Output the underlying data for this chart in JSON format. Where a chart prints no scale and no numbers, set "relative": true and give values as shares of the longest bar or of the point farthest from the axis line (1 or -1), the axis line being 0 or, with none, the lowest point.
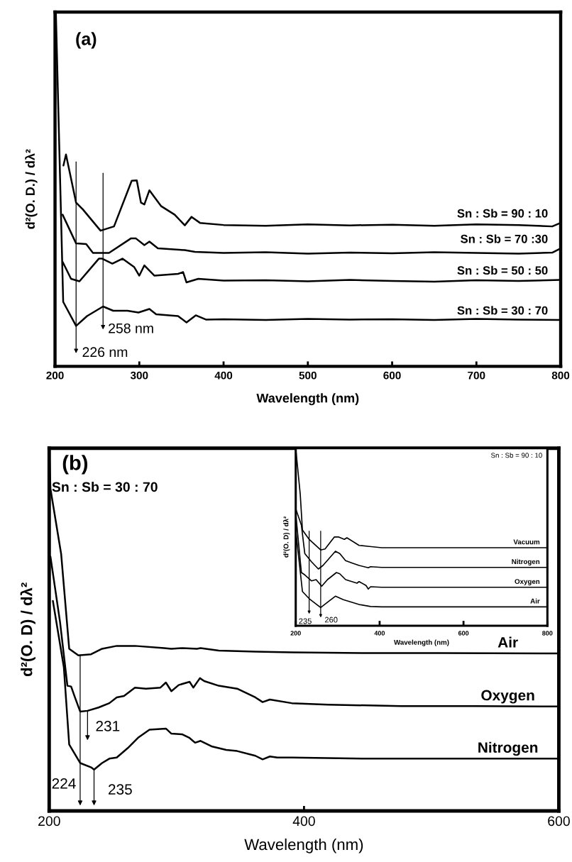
{
  "chart_data": [
    {
      "type": "line",
      "title": "(a)",
      "xlabel": "Wavelength (nm)",
      "ylabel": "d²(O. D.) / dλ²",
      "relative": true,
      "tick_labels": "x",
      "xlim": [
        200,
        800
      ],
      "xticks": [
        200,
        300,
        400,
        500,
        600,
        700,
        800
      ],
      "series": [
        {
          "name": "Sn : Sb = 90 : 10",
          "color": "#000000",
          "x": [
            210,
            213,
            225,
            233,
            254,
            270,
            291,
            297,
            302,
            306,
            312,
            326,
            342,
            354,
            362,
            372,
            400,
            450,
            500,
            550,
            600,
            650,
            700,
            750,
            790,
            800
          ],
          "values": [
            0.567,
            0.598,
            0.462,
            0.443,
            0.383,
            0.395,
            0.524,
            0.525,
            0.462,
            0.457,
            0.497,
            0.452,
            0.428,
            0.398,
            0.422,
            0.405,
            0.399,
            0.397,
            0.401,
            0.398,
            0.4,
            0.397,
            0.401,
            0.399,
            0.395,
            0.405
          ]
        },
        {
          "name": "Sn : Sb = 70 :30",
          "color": "#000000",
          "x": [
            209,
            225,
            237,
            245,
            264,
            290,
            296,
            306,
            312,
            322,
            354,
            366,
            400,
            450,
            500,
            550,
            600,
            650,
            700,
            750,
            790,
            800
          ],
          "values": [
            0.428,
            0.347,
            0.345,
            0.32,
            0.32,
            0.361,
            0.361,
            0.342,
            0.352,
            0.333,
            0.328,
            0.323,
            0.32,
            0.322,
            0.318,
            0.321,
            0.319,
            0.322,
            0.32,
            0.318,
            0.321,
            0.333
          ]
        },
        {
          "name": "Sn : Sb = 50 : 50",
          "color": "#000000",
          "x": [
            209,
            219,
            229,
            252,
            256,
            268,
            280,
            294,
            300,
            306,
            318,
            346,
            352,
            356,
            370,
            400,
            450,
            500,
            550,
            600,
            650,
            700,
            750,
            800
          ],
          "values": [
            0.295,
            0.247,
            0.24,
            0.304,
            0.304,
            0.29,
            0.304,
            0.28,
            0.256,
            0.285,
            0.256,
            0.261,
            0.266,
            0.237,
            0.247,
            0.242,
            0.243,
            0.24,
            0.244,
            0.241,
            0.239,
            0.243,
            0.241,
            0.244
          ]
        },
        {
          "name": "Sn : Sb = 30 : 70",
          "color": "#000000",
          "x": [
            201,
            209.7,
            225,
            238,
            257,
            269,
            286,
            299,
            312,
            320,
            346,
            356,
            367,
            379,
            400,
            450,
            500,
            550,
            600,
            650,
            700,
            750,
            800
          ],
          "values": [
            1.0,
            0.182,
            0.114,
            0.142,
            0.169,
            0.157,
            0.157,
            0.152,
            0.162,
            0.147,
            0.142,
            0.124,
            0.144,
            0.132,
            0.133,
            0.131,
            0.134,
            0.132,
            0.133,
            0.131,
            0.134,
            0.132,
            0.131
          ]
        }
      ],
      "annotations": [
        {
          "text": "226 nm",
          "x": 225,
          "y": 0.114
        },
        {
          "text": "258 nm",
          "x": 257,
          "y": 0.169
        }
      ]
    },
    {
      "type": "line",
      "title": "(b)",
      "subtitle": "Sn : Sb = 30 : 70",
      "xlabel": "Wavelength (nm)",
      "ylabel": "d²(O. D) / dλ²",
      "relative": true,
      "tick_labels": "x",
      "xlim": [
        200,
        600
      ],
      "xticks": [
        200,
        400,
        600
      ],
      "series": [
        {
          "name": "Air",
          "color": "#000000",
          "x": [
            200,
            201,
            209.4,
            215.7,
            222.9,
            232.9,
            241.5,
            253,
            267.3,
            290.2,
            295.9,
            304.5,
            316,
            318.8,
            333.1,
            361.8,
            390.4,
            447.7,
            504.9,
            598.9
          ],
          "values": [
            1.0,
            0.888,
            0.708,
            0.447,
            0.429,
            0.432,
            0.447,
            0.455,
            0.455,
            0.449,
            0.447,
            0.449,
            0.447,
            0.449,
            0.442,
            0.439,
            0.437,
            0.435,
            0.435,
            0.434
          ]
        },
        {
          "name": "Oxygen",
          "color": "#000000",
          "x": [
            201,
            208.5,
            214.3,
            217.2,
            220,
            224.3,
            230.1,
            238.7,
            247.2,
            253,
            258.7,
            267.3,
            275.9,
            287.3,
            291.6,
            295.9,
            301.6,
            310.2,
            313.1,
            318.3,
            321.7,
            333.1,
            347.5,
            361.8,
            367.5,
            373.2,
            390.4,
            419,
            476.3,
            533.6,
            598.9
          ],
          "values": [
            0.701,
            0.521,
            0.345,
            0.343,
            0.315,
            0.274,
            0.276,
            0.285,
            0.297,
            0.313,
            0.317,
            0.34,
            0.337,
            0.34,
            0.354,
            0.33,
            0.347,
            0.356,
            0.34,
            0.366,
            0.358,
            0.345,
            0.337,
            0.313,
            0.3,
            0.307,
            0.297,
            0.293,
            0.289,
            0.289,
            0.288
          ]
        },
        {
          "name": "Nitrogen",
          "color": "#000000",
          "x": [
            202.9,
            211.5,
            215.7,
            224.3,
            232.9,
            235.2,
            241.5,
            247.2,
            253,
            261.6,
            270.2,
            278.7,
            287.3,
            291.6,
            295.9,
            304.5,
            310.2,
            314.5,
            318.8,
            327.4,
            338.9,
            347.5,
            361.8,
            367.5,
            373.2,
            379,
            390.4,
            447.7,
            504.9,
            598.9
          ],
          "values": [
            0.579,
            0.396,
            0.183,
            0.132,
            0.12,
            0.114,
            0.132,
            0.144,
            0.147,
            0.173,
            0.203,
            0.224,
            0.226,
            0.227,
            0.213,
            0.211,
            0.201,
            0.188,
            0.193,
            0.178,
            0.168,
            0.165,
            0.152,
            0.142,
            0.15,
            0.147,
            0.147,
            0.144,
            0.144,
            0.144
          ]
        }
      ],
      "annotations": [
        {
          "text": "224",
          "x": 224.3,
          "y": 0.132
        },
        {
          "text": "231",
          "x": 230.1,
          "y": 0.276
        },
        {
          "text": "235",
          "x": 235.2,
          "y": 0.114
        }
      ]
    },
    {
      "type": "line",
      "title": "Sn : Sb = 90 : 10",
      "xlabel": "Wavelength (nm)",
      "ylabel": "d²(O. D) / dλ²",
      "relative": true,
      "tick_labels": "x",
      "xlim": [
        200,
        800
      ],
      "xticks": [
        200,
        400,
        600,
        800
      ],
      "series": [
        {
          "name": "Vacuum",
          "color": "#000000",
          "x": [
            200,
            210.8,
            216,
            232,
            259.5,
            270,
            292,
            302.7,
            316,
            322,
            351,
            376,
            405,
            500,
            600,
            700,
            797
          ],
          "values": [
            1.0,
            0.74,
            0.54,
            0.487,
            0.427,
            0.433,
            0.5,
            0.5,
            0.487,
            0.496,
            0.453,
            0.447,
            0.44,
            0.44,
            0.44,
            0.44,
            0.44
          ]
        },
        {
          "name": "Nitrogen",
          "color": "#000000",
          "x": [
            200,
            213.5,
            221.6,
            237.8,
            254,
            265,
            294.6,
            305,
            318.9,
            335,
            351,
            373,
            378.4,
            405,
            500,
            600,
            700,
            797
          ],
          "values": [
            0.66,
            0.567,
            0.407,
            0.36,
            0.32,
            0.34,
            0.42,
            0.407,
            0.367,
            0.353,
            0.34,
            0.327,
            0.333,
            0.329,
            0.329,
            0.329,
            0.329,
            0.329
          ]
        },
        {
          "name": "Oxygen",
          "color": "#000000",
          "x": [
            200,
            213.5,
            221.6,
            237.8,
            248.6,
            262,
            275.7,
            297,
            305,
            318.9,
            346,
            351,
            367.6,
            373,
            378.4,
            405,
            500,
            600,
            700,
            797
          ],
          "values": [
            0.633,
            0.3,
            0.287,
            0.253,
            0.26,
            0.223,
            0.26,
            0.3,
            0.293,
            0.26,
            0.24,
            0.249,
            0.227,
            0.207,
            0.22,
            0.217,
            0.217,
            0.217,
            0.217,
            0.217
          ]
        },
        {
          "name": "Air",
          "color": "#000000",
          "x": [
            200,
            216,
            232,
            259.5,
            275.7,
            294.6,
            313.5,
            351,
            378.4,
            405,
            500,
            600,
            700,
            797
          ],
          "values": [
            0.54,
            0.193,
            0.153,
            0.103,
            0.133,
            0.167,
            0.147,
            0.12,
            0.109,
            0.107,
            0.107,
            0.107,
            0.107,
            0.107
          ]
        }
      ],
      "annotations": [
        {
          "text": "235",
          "x": 232,
          "y": 0.153
        },
        {
          "text": "260",
          "x": 259.5,
          "y": 0.103
        }
      ]
    }
  ]
}
